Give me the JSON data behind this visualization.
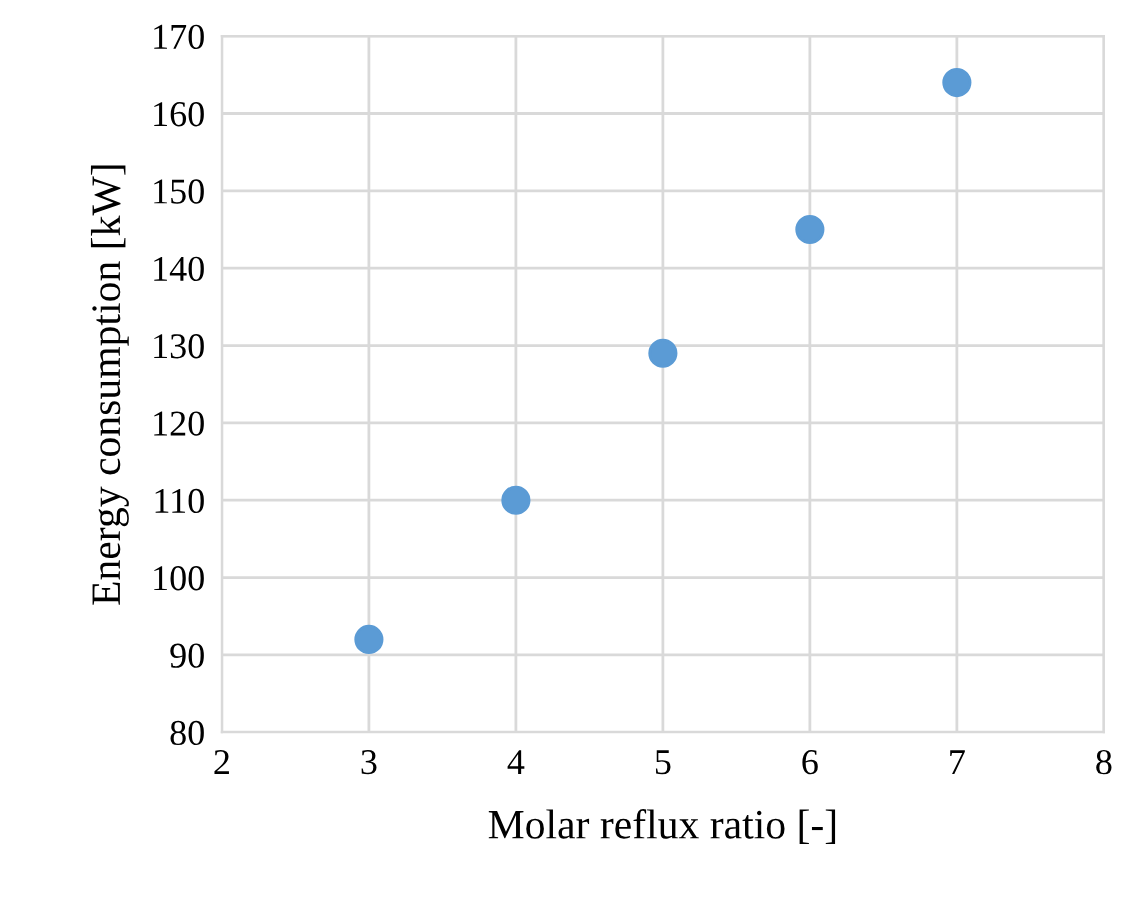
{
  "chart_data": {
    "type": "scatter",
    "xlabel": "Molar reflux ratio [-]",
    "ylabel": "Energy consumption [kW]",
    "x": [
      3,
      4,
      5,
      6,
      7
    ],
    "series": [
      {
        "color": "#5b9bd5",
        "values": [
          92,
          110,
          129,
          145,
          164
        ]
      }
    ],
    "xlim": [
      2,
      8
    ],
    "xticks": [
      2,
      3,
      4,
      5,
      6,
      7,
      8
    ],
    "ylim": [
      80,
      170
    ],
    "yticks": [
      80,
      90,
      100,
      110,
      120,
      130,
      140,
      150,
      160,
      170
    ],
    "grid": true,
    "marker": "circle",
    "legend": false
  }
}
